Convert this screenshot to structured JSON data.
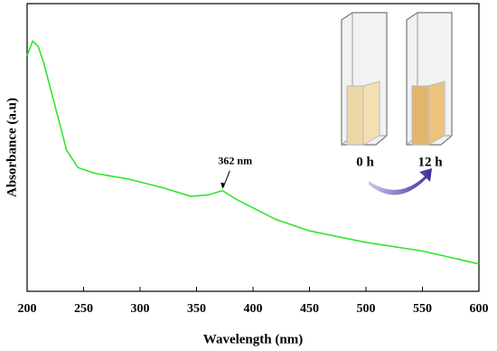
{
  "chart_data": {
    "type": "line",
    "x_label": "Wavelength (nm)",
    "y_label": "Absorbance (a.u)",
    "x": [
      200,
      205,
      210,
      215,
      225,
      235,
      245,
      260,
      275,
      290,
      320,
      345,
      360,
      373,
      385,
      400,
      420,
      450,
      500,
      550,
      600
    ],
    "values": [
      0.82,
      0.87,
      0.85,
      0.79,
      0.64,
      0.49,
      0.43,
      0.41,
      0.4,
      0.39,
      0.36,
      0.33,
      0.335,
      0.35,
      0.32,
      0.29,
      0.25,
      0.21,
      0.17,
      0.14,
      0.095
    ],
    "color": "#2ee62e",
    "xlim": [
      200,
      600
    ],
    "xticks": [
      200,
      250,
      300,
      350,
      400,
      450,
      500,
      550,
      600
    ],
    "ylim": [
      0,
      1
    ],
    "annotation": "362 nm",
    "inset_labels": [
      "0 h",
      "12 h"
    ]
  }
}
